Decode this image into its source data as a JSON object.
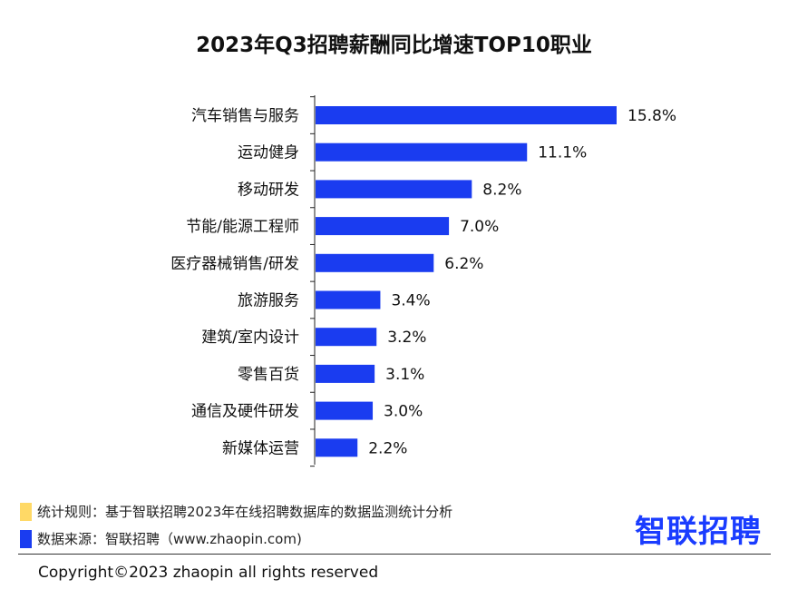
{
  "chart_data": {
    "type": "bar",
    "orientation": "horizontal",
    "title": "2023年Q3招聘薪酬同比增速TOP10职业",
    "categories": [
      "汽车销售与服务",
      "运动健身",
      "移动研发",
      "节能/能源工程师",
      "医疗器械销售/研发",
      "旅游服务",
      "建筑/室内设计",
      "零售百货",
      "通信及硬件研发",
      "新媒体运营"
    ],
    "values": [
      15.8,
      11.1,
      8.2,
      7.0,
      6.2,
      3.4,
      3.2,
      3.1,
      3.0,
      2.2
    ],
    "value_labels": [
      "15.8%",
      "11.1%",
      "8.2%",
      "7.0%",
      "6.2%",
      "3.4%",
      "3.2%",
      "3.1%",
      "3.0%",
      "2.2%"
    ],
    "unit": "%",
    "bar_color": "#1a3cf0",
    "grid": false
  },
  "notes": {
    "rule_label": "统计规则：基于智联招聘2023年在线招聘数据库的数据监测统计分析",
    "rule_color": "#ffd966",
    "source_label": "数据来源：智联招聘（www.zhaopin.com)",
    "source_color": "#1a3cf0"
  },
  "logo_text": "智联招聘",
  "copyright": "Copyright©2023 zhaopin all rights reserved"
}
